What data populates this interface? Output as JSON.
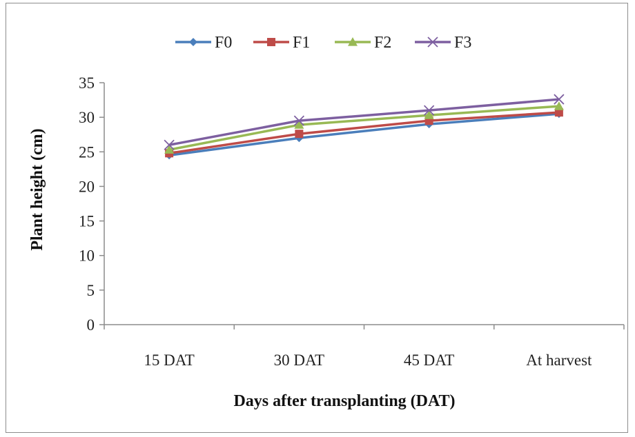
{
  "chart_data": {
    "type": "line",
    "categories": [
      "15 DAT",
      "30 DAT",
      "45 DAT",
      "At harvest"
    ],
    "series": [
      {
        "name": "F0",
        "values": [
          24.5,
          27.0,
          29.0,
          30.5
        ],
        "color": "#4a7ebb",
        "marker": "diamond"
      },
      {
        "name": "F1",
        "values": [
          24.8,
          27.6,
          29.5,
          30.7
        ],
        "color": "#be4b48",
        "marker": "square"
      },
      {
        "name": "F2",
        "values": [
          25.3,
          28.9,
          30.3,
          31.6
        ],
        "color": "#98b954",
        "marker": "triangle"
      },
      {
        "name": "F3",
        "values": [
          26.0,
          29.5,
          31.0,
          32.6
        ],
        "color": "#7d5fa0",
        "marker": "x"
      }
    ],
    "xlabel": "Days after transplanting (DAT)",
    "ylabel": "Plant height (cm)",
    "ylim": [
      0,
      35
    ],
    "yticks": [
      0,
      5,
      10,
      15,
      20,
      25,
      30,
      35
    ],
    "grid": false,
    "legend": "top"
  }
}
